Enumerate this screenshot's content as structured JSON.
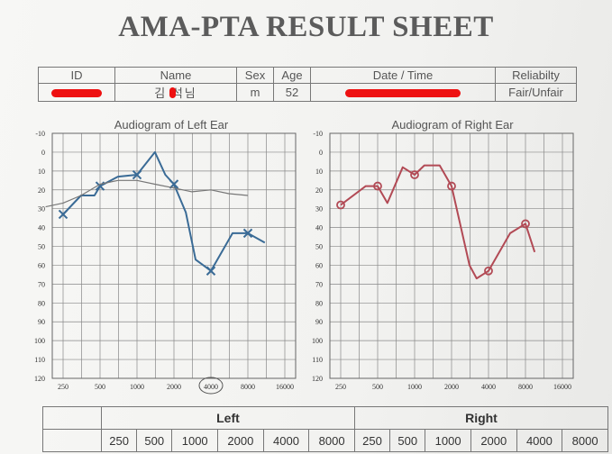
{
  "title": "AMA-PTA RESULT SHEET",
  "info": {
    "headers": [
      "ID",
      "Name",
      "Sex",
      "Age",
      "Date / Time",
      "Reliabilty"
    ],
    "name_value": "김 석님",
    "sex_value": "m",
    "age_value": "52",
    "reliability_value": "Fair/Unfair"
  },
  "left_title": "Audiogram of Left Ear",
  "right_title": "Audiogram of Right Ear",
  "chart_data": [
    {
      "type": "line",
      "title": "Audiogram of Left Ear",
      "ylim": [
        -10,
        120
      ],
      "yticks": [
        "-10",
        "0",
        "10",
        "20",
        "30",
        "40",
        "50",
        "60",
        "70",
        "80",
        "90",
        "100",
        "110",
        "120"
      ],
      "xticks": [
        "250",
        "500",
        "1000",
        "2000",
        "4000",
        "8000",
        "16000"
      ],
      "series": [
        {
          "marker": "x",
          "color": "#3a6b96",
          "x": [
            250,
            350,
            450,
            500,
            700,
            1000,
            1400,
            1700,
            2000,
            2500,
            3000,
            4000,
            6000,
            8000,
            11000
          ],
          "y": [
            33,
            23,
            23,
            18,
            13,
            12,
            0,
            12,
            17,
            32,
            57,
            63,
            43,
            43,
            48
          ],
          "markers_at": [
            250,
            500,
            1000,
            2000,
            4000,
            8000
          ]
        },
        {
          "marker": "none",
          "color": "#777777",
          "x": [
            180,
            250,
            350,
            500,
            700,
            1000,
            1400,
            2000,
            2800,
            4000,
            5600,
            8000
          ],
          "y": [
            29,
            27,
            23,
            17,
            15,
            15,
            17,
            19,
            21,
            20,
            22,
            23
          ]
        }
      ]
    },
    {
      "type": "line",
      "title": "Audiogram of Right Ear",
      "ylim": [
        -10,
        120
      ],
      "yticks": [
        "-10",
        "0",
        "10",
        "20",
        "30",
        "40",
        "50",
        "60",
        "70",
        "80",
        "90",
        "100",
        "110",
        "120"
      ],
      "xticks": [
        "250",
        "500",
        "1000",
        "2000",
        "4000",
        "8000",
        "16000"
      ],
      "series": [
        {
          "marker": "o",
          "color": "#b24a55",
          "x": [
            250,
            400,
            500,
            600,
            800,
            1000,
            1200,
            1600,
            2000,
            2800,
            3200,
            4000,
            6000,
            8000,
            9500
          ],
          "y": [
            28,
            18,
            18,
            27,
            8,
            12,
            7,
            7,
            18,
            60,
            67,
            63,
            43,
            38,
            53
          ],
          "markers_at": [
            250,
            500,
            1000,
            2000,
            4000,
            8000
          ]
        }
      ]
    }
  ],
  "bottom": {
    "left_label": "Left",
    "right_label": "Right",
    "freqs": [
      "250",
      "500",
      "1000",
      "2000",
      "4000",
      "8000"
    ]
  }
}
